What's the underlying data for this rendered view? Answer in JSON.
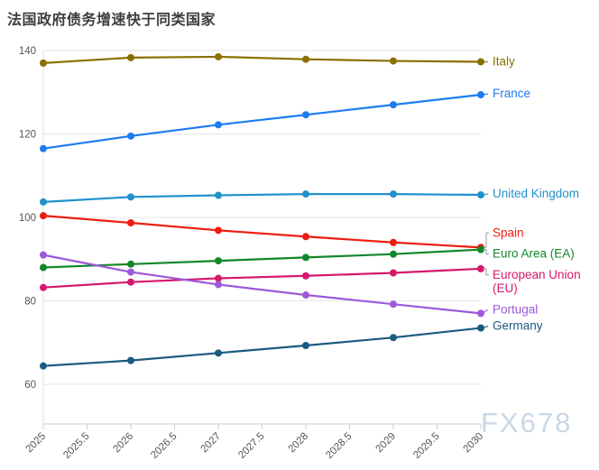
{
  "title": "法国政府债务增速快于同类国家",
  "watermark": "FX678",
  "colors": {
    "title_text": "#3d3d3d",
    "tick_text": "#555555",
    "grid_line": "#e6e6e6",
    "axis_line": "#cccccc",
    "watermark_text": "#c9d7e6"
  },
  "chart_data": {
    "type": "line",
    "title": "法国政府债务增速快于同类国家",
    "xlabel": "",
    "ylabel": "",
    "x": [
      2025,
      2026,
      2027,
      2028,
      2029,
      2030
    ],
    "x_ticks": [
      "2025",
      "2025.5",
      "2026",
      "2026.5",
      "2027",
      "2027.5",
      "2028",
      "2028.5",
      "2029",
      "2029.5",
      "2030"
    ],
    "y_ticks": [
      60,
      80,
      100,
      120,
      140
    ],
    "ylim": [
      50,
      140
    ],
    "grid": true,
    "legend_position": "right-end-labels",
    "series": [
      {
        "name": "Italy",
        "color": "#8a7000",
        "values": [
          137.0,
          138.3,
          138.5,
          137.9,
          137.5,
          137.3
        ],
        "label_lines": [
          "Italy"
        ],
        "label_offset": 0,
        "bracket": false
      },
      {
        "name": "France",
        "color": "#1d7cf2",
        "values": [
          116.5,
          119.5,
          122.2,
          124.6,
          127.0,
          129.4
        ],
        "label_lines": [
          "France"
        ],
        "label_offset": -1,
        "bracket": false
      },
      {
        "name": "United Kingdom",
        "color": "#2191cc",
        "values": [
          103.7,
          104.9,
          105.3,
          105.6,
          105.6,
          105.4
        ],
        "label_lines": [
          "United Kingdom"
        ],
        "label_offset": -1,
        "bracket": false
      },
      {
        "name": "Spain",
        "color": "#ee1d0f",
        "values": [
          100.4,
          98.7,
          96.9,
          95.4,
          94.0,
          92.8
        ],
        "label_lines": [
          "Spain"
        ],
        "label_offset": -16,
        "bracket": true
      },
      {
        "name": "Euro Area (EA)",
        "color": "#12862b",
        "values": [
          88.0,
          88.8,
          89.6,
          90.4,
          91.2,
          92.3
        ],
        "label_lines": [
          "Euro Area (EA)"
        ],
        "label_offset": 5,
        "bracket": true
      },
      {
        "name": "European Union (EU)",
        "color": "#d5186c",
        "values": [
          83.2,
          84.5,
          85.4,
          86.0,
          86.7,
          87.7
        ],
        "label_lines": [
          "European Union",
          "(EU)"
        ],
        "label_offset": 7,
        "bracket": true
      },
      {
        "name": "Portugal",
        "color": "#9d58da",
        "values": [
          91.0,
          86.9,
          83.9,
          81.4,
          79.2,
          77.0
        ],
        "label_lines": [
          "Portugal"
        ],
        "label_offset": -4,
        "bracket": false
      },
      {
        "name": "Germany",
        "color": "#1b5b80",
        "values": [
          64.4,
          65.7,
          67.5,
          69.3,
          71.2,
          73.5
        ],
        "label_lines": [
          "Germany"
        ],
        "label_offset": -2,
        "bracket": false
      }
    ]
  }
}
